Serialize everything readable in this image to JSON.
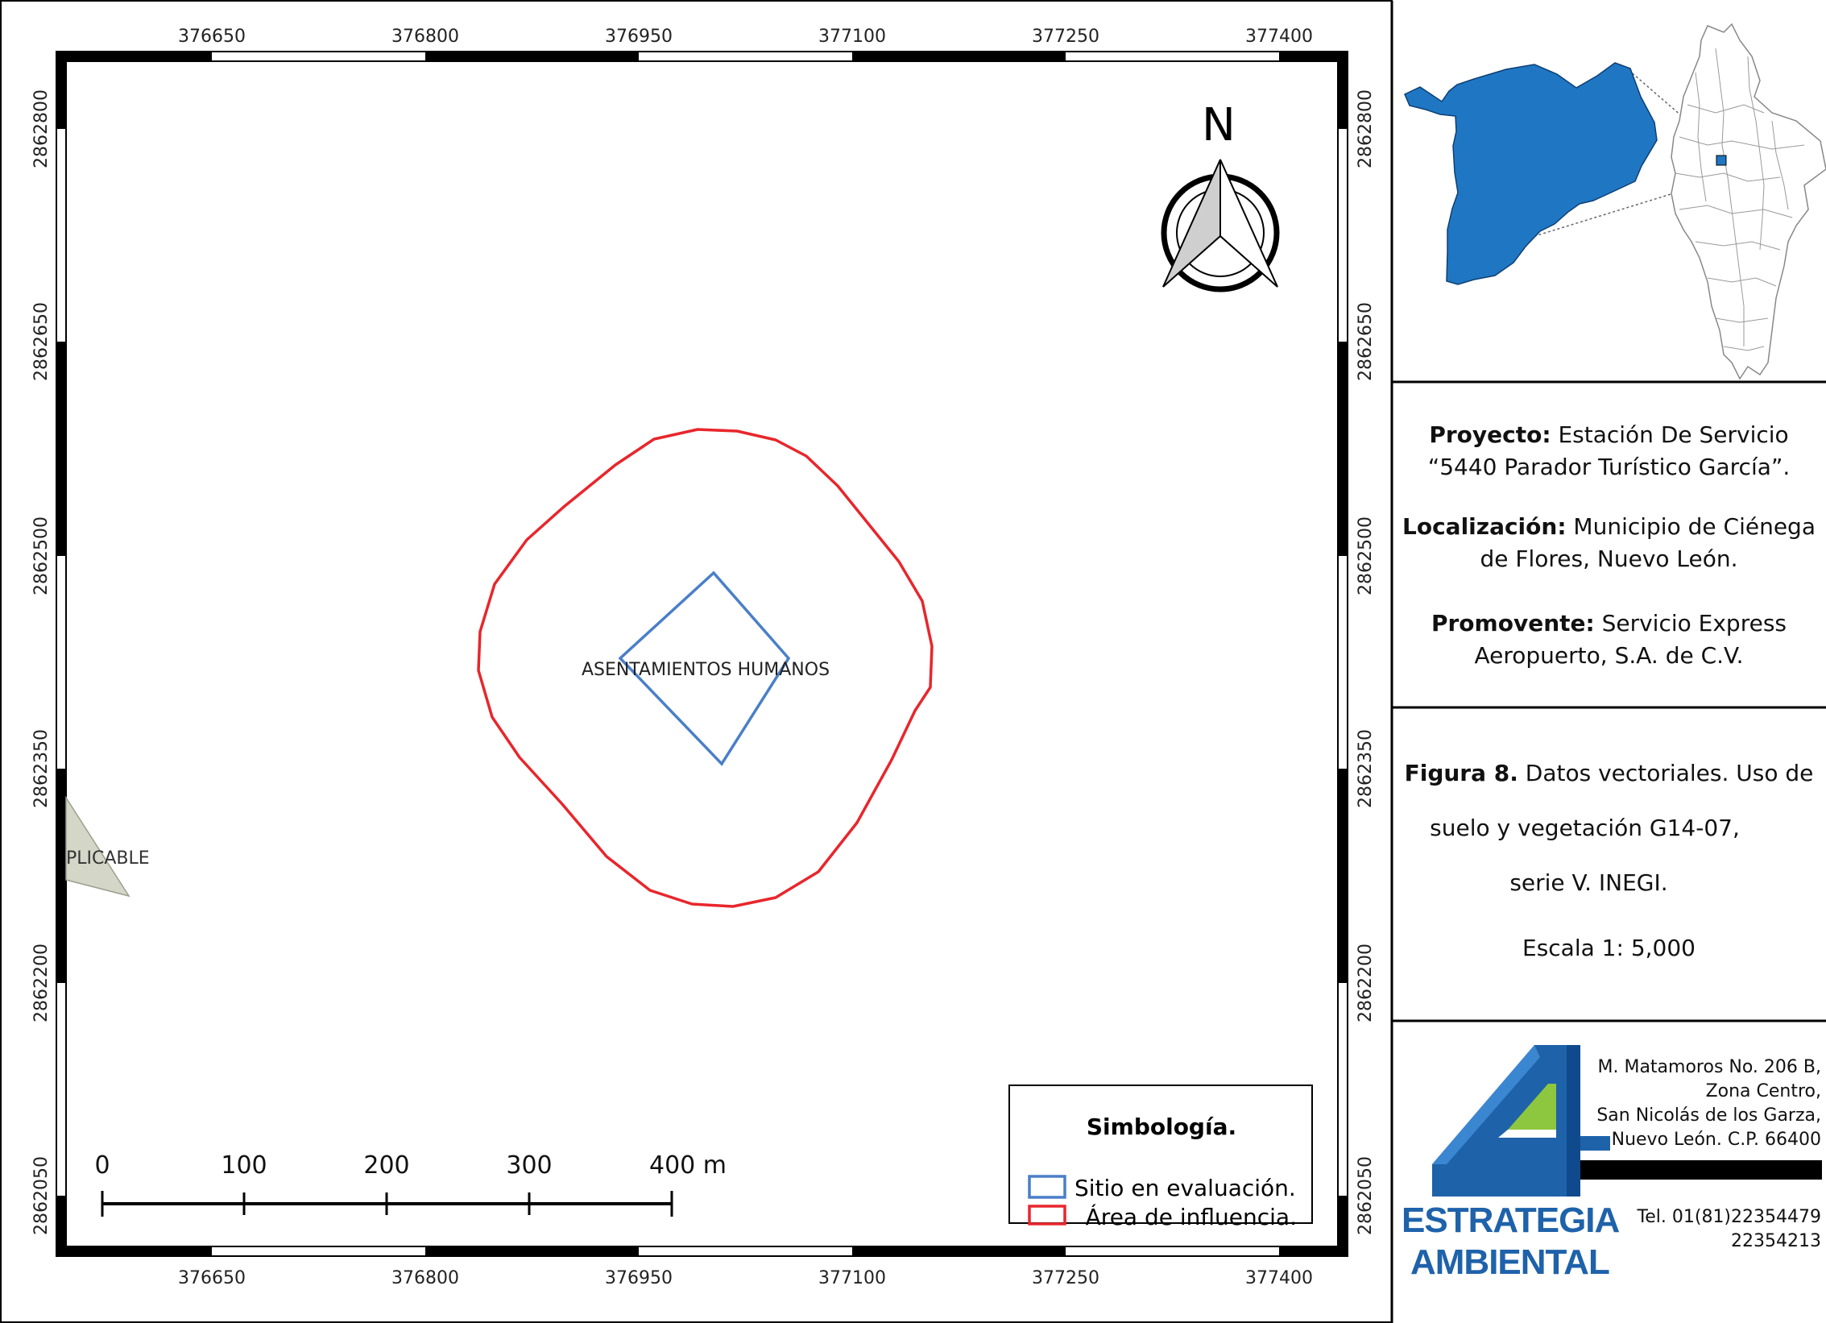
{
  "map": {
    "x_ticks": [
      "376650",
      "376800",
      "376950",
      "377100",
      "377250",
      "377400"
    ],
    "y_ticks": [
      "2862800",
      "2862650",
      "2862500",
      "2862350",
      "2862200",
      "2862050"
    ],
    "north_label": "N",
    "features": {
      "settlement_label": "ASENTAMIENTOS HUMANOS",
      "partial_label": "PLICABLE"
    },
    "scale_bar": {
      "labels": [
        "0",
        "100",
        "200",
        "300",
        "400 m"
      ]
    },
    "legend": {
      "title": "Simbología.",
      "items": [
        {
          "label": "Sitio en evaluación.",
          "color": "#4a7fc8"
        },
        {
          "label": "Área de influencia.",
          "color": "#e8262c"
        }
      ]
    }
  },
  "colors": {
    "site_outline": "#4a7fc8",
    "influence_outline": "#e8262c",
    "municipality_fill": "#1f77c4",
    "logo_blue": "#1e62aa",
    "logo_green": "#8dc63f"
  },
  "panel": {
    "project_label": "Proyecto:",
    "project_value_1": " Estación De Servicio",
    "project_value_2": "“5440 Parador Turístico García”.",
    "location_label": "Localización:",
    "location_value_1": " Municipio de Ciénega",
    "location_value_2": "de Flores, Nuevo León.",
    "promoter_label": "Promovente:",
    "promoter_value_1": " Servicio Express",
    "promoter_value_2": "Aeropuerto, S.A. de C.V.",
    "figure_label": "Figura 8.",
    "figure_value_1": " Datos vectoriales. Uso de",
    "figure_value_2": "suelo y vegetación G14-07,",
    "figure_value_3": "serie V. INEGI.",
    "scale_text": "Escala 1: 5,000",
    "logo_line1": "ESTRATEGIA",
    "logo_line2": "AMBIENTAL",
    "address_1": "M. Matamoros No. 206 B,",
    "address_2": "Zona Centro,",
    "address_3": "San Nicolás de los Garza,",
    "address_4": "Nuevo León. C.P. 66400",
    "phone_1": "Tel. 01(81)22354479",
    "phone_2": "22354213"
  }
}
